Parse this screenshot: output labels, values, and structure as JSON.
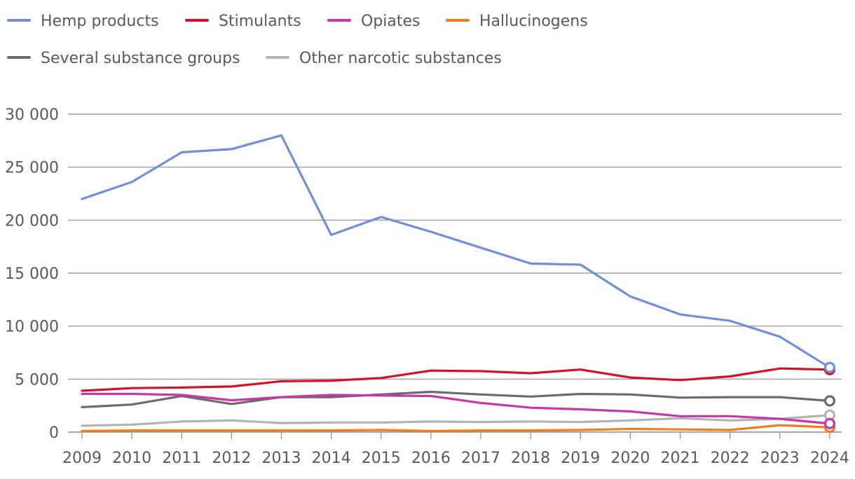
{
  "chart_data": {
    "type": "line",
    "title": "",
    "xlabel": "",
    "ylabel": "",
    "x": [
      "2009",
      "2010",
      "2011",
      "2012",
      "2013",
      "2014",
      "2015",
      "2016",
      "2017",
      "2018",
      "2019",
      "2020",
      "2021",
      "2022",
      "2023",
      "2024"
    ],
    "ylim": [
      0,
      30000
    ],
    "yticks": [
      0,
      5000,
      10000,
      15000,
      20000,
      25000,
      30000
    ],
    "ytick_labels": [
      "0",
      "5 000",
      "10 000",
      "15 000",
      "20 000",
      "25 000",
      "30 000"
    ],
    "grid": "horizontal",
    "legend_position": "top-left",
    "series": [
      {
        "name": "Hemp products",
        "color": "#6f8fd8",
        "values": [
          22000,
          23600,
          26400,
          26700,
          28000,
          18600,
          20300,
          18900,
          17400,
          15900,
          15800,
          12800,
          11100,
          10500,
          9000,
          6100
        ]
      },
      {
        "name": "Stimulants",
        "color": "#d7102a",
        "values": [
          3900,
          4150,
          4200,
          4300,
          4800,
          4850,
          5100,
          5800,
          5750,
          5550,
          5900,
          5150,
          4900,
          5250,
          6000,
          5900
        ]
      },
      {
        "name": "Opiates",
        "color": "#c837a6",
        "values": [
          3600,
          3600,
          3500,
          3000,
          3300,
          3500,
          3450,
          3400,
          2750,
          2300,
          2150,
          1950,
          1500,
          1500,
          1250,
          800
        ]
      },
      {
        "name": "Hallucinogens",
        "color": "#f07c1a",
        "values": [
          100,
          150,
          150,
          150,
          150,
          150,
          200,
          100,
          150,
          150,
          200,
          300,
          250,
          200,
          650,
          450
        ]
      },
      {
        "name": "Several substance groups",
        "color": "#6b6b6b",
        "values": [
          2350,
          2600,
          3400,
          2650,
          3300,
          3300,
          3550,
          3800,
          3550,
          3350,
          3600,
          3550,
          3250,
          3300,
          3300,
          2950
        ]
      },
      {
        "name": "Other narcotic substances",
        "color": "#b3b3b3",
        "values": [
          600,
          700,
          1000,
          1100,
          850,
          900,
          900,
          1000,
          950,
          1000,
          950,
          1100,
          1300,
          1100,
          1250,
          1600
        ]
      }
    ]
  }
}
